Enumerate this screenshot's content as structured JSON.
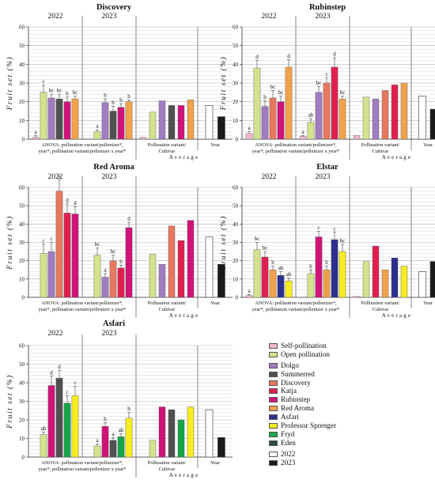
{
  "chart_data": [
    {
      "type": "bar",
      "title": "Discovery",
      "ylabel": "Fruit set (%)",
      "ylim": [
        0,
        60
      ],
      "yticks": [
        0,
        10,
        20,
        30,
        40,
        50,
        60
      ],
      "groups": [
        {
          "label": "2022",
          "series": [
            "Self-pollination",
            "Open pollination",
            "Dolgo",
            "Summerred",
            "Rubinstep",
            "Red Aroma"
          ],
          "values": [
            1,
            25,
            22,
            21.5,
            20,
            21.5
          ],
          "errors": [
            0.8,
            4,
            2,
            2.5,
            2.5,
            1.5
          ],
          "letters": [
            "a",
            "c",
            "bc",
            "bc",
            "b",
            "bc"
          ]
        },
        {
          "label": "2023",
          "series": [
            "Self-pollination",
            "Open pollination",
            "Dolgo",
            "Summerred",
            "Rubinstep",
            "Red Aroma"
          ],
          "values": [
            0,
            4,
            19.5,
            15,
            17,
            20
          ],
          "errors": [
            0,
            1,
            2,
            2.5,
            2,
            1
          ],
          "letters": [
            "",
            "a",
            "b",
            "b",
            "b",
            "b"
          ]
        }
      ],
      "average": {
        "series": [
          "Self-pollination",
          "Open pollination",
          "Dolgo",
          "Summerred",
          "Rubinstep",
          "Red Aroma"
        ],
        "values": [
          1,
          14.5,
          20.5,
          18,
          18,
          21
        ]
      },
      "year": {
        "2022": 18,
        "2023": 12
      },
      "anova": "ANOVA: pollination variant/pollenizer*, year*, pollination variant/pollenizer x year*",
      "xlabel_variant": "Pollination variant/ Cultivar",
      "xlabel_year": "Year",
      "xlabel_avg": "Average"
    },
    {
      "type": "bar",
      "title": "Rubinstep",
      "ylabel": "Fruit set (%)",
      "ylim": [
        0,
        60
      ],
      "yticks": [
        0,
        10,
        20,
        30,
        40,
        50,
        60
      ],
      "groups": [
        {
          "label": "2022",
          "series": [
            "Self-pollination",
            "Open pollination",
            "Dolgo",
            "Discovery",
            "Rubinstep",
            "Red Aroma"
          ],
          "values": [
            3,
            38,
            17.5,
            22,
            20,
            38.5
          ],
          "errors": [
            1,
            4,
            3,
            4,
            3,
            4
          ],
          "letters": [
            "a",
            "d",
            "b",
            "bc",
            "bc",
            "d"
          ]
        },
        {
          "label": "2023",
          "series": [
            "Self-pollination",
            "Open pollination",
            "Dolgo",
            "Discovery",
            "Katja",
            "Red Aroma"
          ],
          "values": [
            1.5,
            9,
            25,
            30,
            38.5,
            21.5
          ],
          "errors": [
            0.5,
            2,
            3,
            3,
            5,
            1.5
          ],
          "letters": [
            "a",
            "ab",
            "bc",
            "c",
            "d",
            "bc"
          ]
        }
      ],
      "average": {
        "series": [
          "Self-pollination",
          "Open pollination",
          "Dolgo",
          "Discovery",
          "Katja",
          "Red Aroma"
        ],
        "values": [
          2,
          22.5,
          21.5,
          26,
          29,
          30
        ]
      },
      "year": {
        "2022": 23,
        "2023": 16
      },
      "anova": "ANOVA: pollination variant/pollenizer*, year*, pollination variant/pollenizer x year*",
      "xlabel_variant": "Pollination variant/ Cultivar",
      "xlabel_year": "Year",
      "xlabel_avg": "Average"
    },
    {
      "type": "bar",
      "title": "Red Aroma",
      "ylabel": "Fruit set (%)",
      "ylim": [
        0,
        60
      ],
      "yticks": [
        0,
        10,
        20,
        30,
        40,
        50,
        60
      ],
      "groups": [
        {
          "label": "2022",
          "series": [
            "Self-pollination",
            "Open pollination",
            "Dolgo",
            "Discovery",
            "Katja",
            "Rubinstep"
          ],
          "values": [
            0,
            24,
            25,
            58,
            46,
            45.5
          ],
          "errors": [
            0,
            5,
            5,
            6,
            5,
            4
          ],
          "letters": [
            "",
            "c",
            "c",
            "e",
            "d",
            "d"
          ]
        },
        {
          "label": "2023",
          "series": [
            "Self-pollination",
            "Open pollination",
            "Dolgo",
            "Discovery",
            "Katja",
            "Rubinstep"
          ],
          "values": [
            0,
            23,
            11,
            20,
            16,
            38
          ],
          "errors": [
            0,
            4,
            2,
            3,
            1.5,
            3
          ],
          "letters": [
            "",
            "bc",
            "a",
            "bc",
            "b",
            "d"
          ]
        }
      ],
      "average": {
        "series": [
          "Self-pollination",
          "Open pollination",
          "Dolgo",
          "Discovery",
          "Katja",
          "Rubinstep"
        ],
        "values": [
          0,
          23.5,
          18,
          39,
          31,
          42
        ]
      },
      "year": {
        "2022": 33,
        "2023": 18
      },
      "anova": "ANOVA: pollination variant/pollenizer*, year*, pollination variant/pollenizer x year*",
      "xlabel_variant": "Pollination variant/ Cultivar",
      "xlabel_year": "Year",
      "xlabel_avg": "Average"
    },
    {
      "type": "bar",
      "title": "Elstar",
      "ylabel": "Fruit set (%)",
      "ylim": [
        0,
        60
      ],
      "yticks": [
        0,
        10,
        20,
        30,
        40,
        50,
        60
      ],
      "groups": [
        {
          "label": "2022",
          "series": [
            "Self-pollination",
            "Open pollination",
            "Katja",
            "Red Aroma",
            "Asfari",
            "Professor Sprenger"
          ],
          "values": [
            1,
            26,
            22,
            15,
            12,
            9
          ],
          "errors": [
            0.5,
            4,
            3,
            2,
            2,
            1.5
          ],
          "letters": [
            "a",
            "bc",
            "bc",
            "b",
            "ab",
            "ab"
          ]
        },
        {
          "label": "2023",
          "series": [
            "Self-pollination",
            "Open pollination",
            "Rubinstep",
            "Red Aroma",
            "Asfari",
            "Professor Sprenger"
          ],
          "values": [
            0,
            13,
            33,
            15,
            31.5,
            25
          ],
          "errors": [
            0,
            2,
            3,
            2,
            4,
            4
          ],
          "letters": [
            "",
            "b",
            "c",
            "b",
            "c",
            "bc"
          ]
        }
      ],
      "average": {
        "series": [
          "Self-pollination",
          "Open pollination",
          "Katja",
          "Red Aroma",
          "Asfari",
          "Professor Sprenger"
        ],
        "values": [
          0.5,
          19.5,
          28,
          15,
          21.5,
          17
        ]
      },
      "year": {
        "2022": 14,
        "2023": 19.5
      },
      "anova": "ANOVA: pollination variant/pollenizer*, year*, pollination variant/pollenizer x year*",
      "xlabel_variant": "Pollination variant/ Cultivar",
      "xlabel_year": "Year",
      "xlabel_avg": "Average"
    },
    {
      "type": "bar",
      "title": "Asfari",
      "ylabel": "Fruit set (%)",
      "ylim": [
        0,
        60
      ],
      "yticks": [
        0,
        10,
        20,
        30,
        40,
        50,
        60
      ],
      "groups": [
        {
          "label": "2022",
          "series": [
            "Self-pollination",
            "Open pollination",
            "Rubinstep",
            "Summerred",
            "Fryd",
            "Professor Sprenger"
          ],
          "values": [
            0,
            12,
            38.5,
            42.5,
            29,
            33
          ],
          "errors": [
            0,
            1.5,
            5,
            4,
            4,
            5
          ],
          "letters": [
            "",
            "ab",
            "d",
            "d",
            "c",
            "c"
          ]
        },
        {
          "label": "2023",
          "series": [
            "Self-pollination",
            "Open pollination",
            "Rubinstep",
            "Summerred",
            "Fryd",
            "Professor Sprenger"
          ],
          "values": [
            0,
            6,
            16.5,
            9,
            11,
            21
          ],
          "errors": [
            0,
            1,
            2,
            1.5,
            1.5,
            3
          ],
          "letters": [
            "",
            "a",
            "b",
            "a",
            "ab",
            "b"
          ]
        }
      ],
      "average": {
        "series": [
          "Self-pollination",
          "Open pollination",
          "Rubinstep",
          "Summerred",
          "Fryd",
          "Professor Sprenger"
        ],
        "values": [
          0,
          9,
          27,
          25.5,
          20,
          27
        ]
      },
      "year": {
        "2022": 25.5,
        "2023": 10.5
      },
      "anova": "ANOVA: pollination variant/pollenizer*, year*, pollination variant/pollenizer x year*",
      "xlabel_variant": "Pollination variant/ Cultivar",
      "xlabel_year": "Year",
      "xlabel_avg": "Average"
    }
  ],
  "colors": {
    "Self-pollination": "#f4b8c9",
    "Open pollination": "#d4e28d",
    "Dolgo": "#a07cc0",
    "Summerred": "#505050",
    "Discovery": "#e8775f",
    "Katja": "#e11f4f",
    "Rubinstep": "#d0127a",
    "Red Aroma": "#f2a24a",
    "Asfari": "#2d2f8f",
    "Professor Sprenger": "#f7ec1f",
    "Fryd": "#17a548",
    "Eden": "#2f4a3c",
    "2022": "#ffffff",
    "2023": "#1a1a1a"
  },
  "legend": {
    "groups": [
      [
        "Self-pollination",
        "Open pollination"
      ],
      [
        "Dolgo",
        "Summerred",
        "Discovery",
        "Katja",
        "Rubinstep",
        "Red Aroma",
        "Asfari",
        "Professor Sprenger",
        "Fryd",
        "Eden"
      ],
      [
        "2022",
        "2023"
      ]
    ]
  }
}
